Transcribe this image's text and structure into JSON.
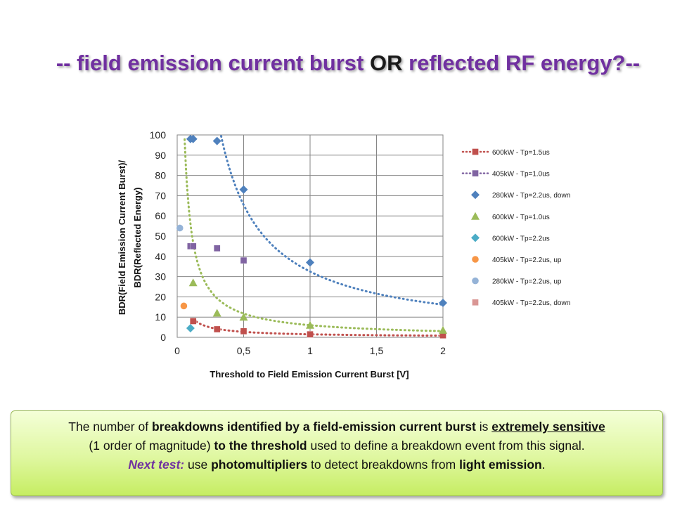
{
  "title": {
    "part1": "-- ",
    "part2": "field emission current burst",
    "part3": " OR ",
    "part4": "reflected RF energy",
    "part5": "?--"
  },
  "chart_data": {
    "type": "scatter",
    "xlabel": "Threshold to Field Emission Current Burst [V]",
    "ylabel_line1": "BDR(Field Emission Current Burst)/",
    "ylabel_line2": "BDR(Reflected Energy)",
    "xlim": [
      0,
      2
    ],
    "ylim": [
      0,
      100
    ],
    "x_ticks": [
      "0",
      "0,5",
      "1",
      "1,5",
      "2"
    ],
    "x_tick_values": [
      0,
      0.5,
      1,
      1.5,
      2
    ],
    "y_ticks": [
      "0",
      "10",
      "20",
      "30",
      "40",
      "50",
      "60",
      "70",
      "80",
      "90",
      "100"
    ],
    "y_tick_values": [
      0,
      10,
      20,
      30,
      40,
      50,
      60,
      70,
      80,
      90,
      100
    ],
    "grid": true,
    "legend_position": "right",
    "series": [
      {
        "name": "600kW - Tp=1.5us",
        "marker": "square",
        "color": "#c0504d",
        "line": true,
        "points": [
          [
            0.12,
            8
          ],
          [
            0.3,
            4
          ],
          [
            0.5,
            3
          ],
          [
            1.0,
            1.5
          ],
          [
            2.0,
            1
          ]
        ]
      },
      {
        "name": "405kW - Tp=1.0us",
        "marker": "square",
        "color": "#8064a2",
        "line": true,
        "points": [
          [
            0.1,
            45
          ],
          [
            0.12,
            45
          ],
          [
            0.3,
            44
          ],
          [
            0.5,
            38
          ]
        ]
      },
      {
        "name": "280kW - Tp=2.2us, down",
        "marker": "diamond",
        "color": "#4f81bd",
        "line": false,
        "points": [
          [
            0.1,
            98
          ],
          [
            0.12,
            98
          ],
          [
            0.3,
            97
          ],
          [
            0.5,
            73
          ],
          [
            1.0,
            37
          ],
          [
            2.0,
            17
          ]
        ]
      },
      {
        "name": "600kW - Tp=1.0us",
        "marker": "triangle",
        "color": "#9bbb59",
        "line": false,
        "points": [
          [
            0.12,
            27
          ],
          [
            0.3,
            12
          ],
          [
            0.5,
            10
          ],
          [
            1.0,
            6
          ],
          [
            2.0,
            3.5
          ]
        ]
      },
      {
        "name": "600kW - Tp=2.2us",
        "marker": "diamond",
        "color": "#4bacc6",
        "line": false,
        "points": [
          [
            0.1,
            4.5
          ]
        ]
      },
      {
        "name": "405kW - Tp=2.2us, up",
        "marker": "circle",
        "color": "#f79646",
        "line": false,
        "points": [
          [
            0.05,
            15.5
          ]
        ]
      },
      {
        "name": "280kW - Tp=2.2us, up",
        "marker": "circle",
        "color": "#95b3d7",
        "line": false,
        "points": [
          [
            0.02,
            54
          ]
        ]
      },
      {
        "name": "405kW - Tp=2.2us, down",
        "marker": "square",
        "color": "#d99694",
        "line": false,
        "points": []
      }
    ],
    "trendlines": [
      {
        "color": "#4f81bd",
        "type": "power",
        "a": 32.5,
        "b": -1.01,
        "xrange": [
          0.16,
          2.0
        ]
      },
      {
        "color": "#9bbb59",
        "type": "power",
        "a": 6.0,
        "b": -0.97,
        "xrange": [
          0.02,
          2.0
        ]
      },
      {
        "color": "#c0504d",
        "type": "power",
        "a": 1.5,
        "b": -0.85,
        "xrange": [
          0.12,
          2.0
        ]
      }
    ]
  },
  "note": {
    "l1_a": "The number of ",
    "l1_b": "breakdowns identified by a field-emission current burst",
    "l1_c": " is ",
    "l1_d": "extremely sensitive",
    "l2_a": "(1 order of magnitude) ",
    "l2_b": "to the threshold",
    "l2_c": " used to define a breakdown event from this signal.",
    "l3_a": "Next test:",
    "l3_b": " use ",
    "l3_c": "photomultipliers",
    "l3_d": " to detect breakdowns from ",
    "l3_e": "light emission",
    "l3_f": "."
  }
}
